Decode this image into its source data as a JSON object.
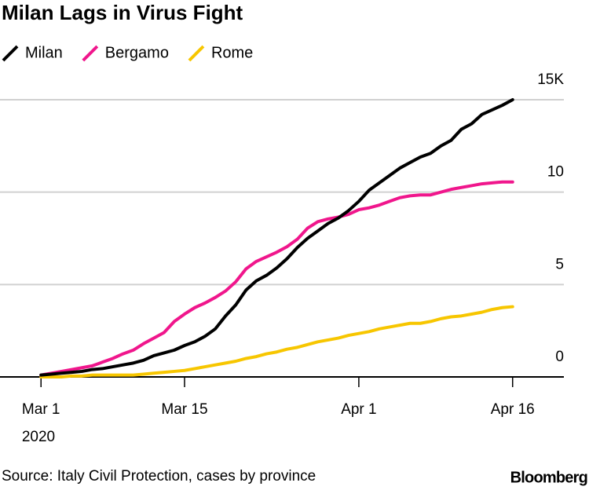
{
  "chart_data": {
    "type": "line",
    "title": "Milan Lags in Virus Fight",
    "x": [
      "2020-03-01",
      "2020-03-02",
      "2020-03-03",
      "2020-03-04",
      "2020-03-05",
      "2020-03-06",
      "2020-03-07",
      "2020-03-08",
      "2020-03-09",
      "2020-03-10",
      "2020-03-11",
      "2020-03-12",
      "2020-03-13",
      "2020-03-14",
      "2020-03-15",
      "2020-03-16",
      "2020-03-17",
      "2020-03-18",
      "2020-03-19",
      "2020-03-20",
      "2020-03-21",
      "2020-03-22",
      "2020-03-23",
      "2020-03-24",
      "2020-03-25",
      "2020-03-26",
      "2020-03-27",
      "2020-03-28",
      "2020-03-29",
      "2020-03-30",
      "2020-03-31",
      "2020-04-01",
      "2020-04-02",
      "2020-04-03",
      "2020-04-04",
      "2020-04-05",
      "2020-04-06",
      "2020-04-07",
      "2020-04-08",
      "2020-04-09",
      "2020-04-10",
      "2020-04-11",
      "2020-04-12",
      "2020-04-13",
      "2020-04-14",
      "2020-04-15",
      "2020-04-16"
    ],
    "series": [
      {
        "name": "Milan",
        "color": "#000000",
        "values": [
          100,
          150,
          200,
          250,
          300,
          400,
          450,
          550,
          650,
          750,
          900,
          1150,
          1300,
          1450,
          1700,
          1900,
          2200,
          2600,
          3300,
          3900,
          4700,
          5200,
          5500,
          5900,
          6400,
          7000,
          7500,
          7900,
          8300,
          8600,
          9000,
          9500,
          10100,
          10500,
          10900,
          11300,
          11600,
          11900,
          12100,
          12500,
          12800,
          13400,
          13700,
          14200,
          14450,
          14700,
          15000
        ]
      },
      {
        "name": "Bergamo",
        "color": "#f0168c",
        "values": [
          100,
          200,
          300,
          400,
          500,
          600,
          800,
          1000,
          1250,
          1450,
          1800,
          2100,
          2400,
          3000,
          3400,
          3750,
          4000,
          4300,
          4650,
          5150,
          5850,
          6250,
          6500,
          6750,
          7050,
          7450,
          8050,
          8400,
          8550,
          8650,
          8800,
          9050,
          9150,
          9300,
          9500,
          9700,
          9800,
          9850,
          9850,
          10000,
          10150,
          10250,
          10350,
          10450,
          10500,
          10550,
          10550
        ]
      },
      {
        "name": "Rome",
        "color": "#f7c600",
        "values": [
          0,
          0,
          0,
          50,
          50,
          100,
          100,
          100,
          100,
          100,
          150,
          200,
          250,
          300,
          350,
          450,
          550,
          650,
          750,
          850,
          1000,
          1100,
          1250,
          1350,
          1500,
          1600,
          1750,
          1900,
          2000,
          2100,
          2250,
          2350,
          2450,
          2600,
          2700,
          2800,
          2900,
          2900,
          3000,
          3150,
          3250,
          3300,
          3400,
          3500,
          3650,
          3750,
          3800
        ]
      }
    ],
    "xlim": [
      "2020-02-26",
      "2020-04-21"
    ],
    "xticks": [
      {
        "value": "2020-03-01",
        "label": "Mar 1"
      },
      {
        "value": "2020-03-15",
        "label": "Mar 15"
      },
      {
        "value": "2020-04-01",
        "label": "Apr 1"
      },
      {
        "value": "2020-04-16",
        "label": "Apr 16"
      }
    ],
    "x_year_label": "2020",
    "ylim": [
      0,
      15000
    ],
    "yticks": [
      0,
      {
        "value": 5000,
        "label": "5"
      },
      {
        "value": 10000,
        "label": "10"
      },
      {
        "value": 15000,
        "label": "15K"
      }
    ],
    "grid": true,
    "source": "Source: Italy Civil Protection, cases by province",
    "brand": "Bloomberg"
  }
}
